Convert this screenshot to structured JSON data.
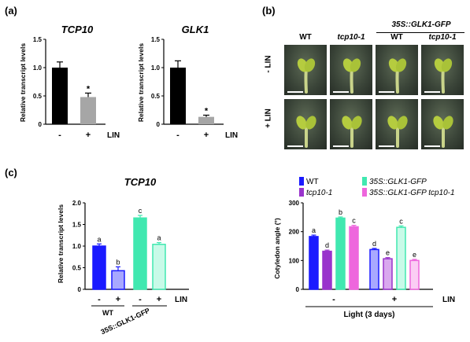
{
  "panel_a": {
    "label": "(a)",
    "charts": [
      {
        "title": "TCP10",
        "ylabel": "Relative transcript levels",
        "yticks": [
          "0",
          "0.5",
          "1.0",
          "1.5"
        ],
        "bars": [
          {
            "value": 1.0,
            "err": 0.1,
            "color": "#000000",
            "x": "-"
          },
          {
            "value": 0.48,
            "err": 0.07,
            "color": "#a6a6a6",
            "x": "+",
            "sig": "*"
          }
        ],
        "xlabel": "LIN"
      },
      {
        "title": "GLK1",
        "ylabel": "Relative transcript levels",
        "yticks": [
          "0",
          "0.5",
          "1.0",
          "1.5"
        ],
        "bars": [
          {
            "value": 1.0,
            "err": 0.12,
            "color": "#000000",
            "x": "-"
          },
          {
            "value": 0.13,
            "err": 0.03,
            "color": "#a6a6a6",
            "x": "+",
            "sig": "*"
          }
        ],
        "xlabel": "LIN"
      }
    ]
  },
  "panel_b": {
    "label": "(b)",
    "group_header": "35S::GLK1-GFP",
    "col_labels": [
      "WT",
      "tcp10-1",
      "WT",
      "tcp10-1"
    ],
    "row_labels": [
      "- LIN",
      "+ LIN"
    ]
  },
  "panel_c": {
    "label": "(c)",
    "chart_data": [
      {
        "type": "bar",
        "title": "TCP10",
        "ylabel": "Relative transcript levels",
        "yticks": [
          "0",
          "0.5",
          "1.0",
          "1.5",
          "2.0"
        ],
        "ylim": [
          0,
          2.0
        ],
        "xlabel": "LIN",
        "x_signs": [
          "-",
          "+",
          "-",
          "+"
        ],
        "groups": [
          "WT",
          "35S::GLK1-GFP"
        ],
        "bars": [
          {
            "value": 1.0,
            "err": 0.05,
            "letter": "a",
            "fill": "#1a1aff",
            "stroke": "#1a1aff"
          },
          {
            "value": 0.43,
            "err": 0.09,
            "letter": "b",
            "fill": "#a8a8ff",
            "stroke": "#1a1aff"
          },
          {
            "value": 1.65,
            "err": 0.06,
            "letter": "c",
            "fill": "#40e8b0",
            "stroke": "#40e8b0"
          },
          {
            "value": 1.04,
            "err": 0.04,
            "letter": "a",
            "fill": "#c8fae8",
            "stroke": "#40e8b0"
          }
        ]
      },
      {
        "type": "bar",
        "ylabel": "Cotyledon angle (°)",
        "yticks": [
          "0",
          "100",
          "200",
          "300"
        ],
        "ylim": [
          0,
          300
        ],
        "xlabel": "LIN",
        "x_signs": [
          "-",
          "+"
        ],
        "bottom_label": "Light (3 days)",
        "legend": [
          {
            "name": "WT",
            "color": "#1a1aff",
            "italic": false
          },
          {
            "name": "35S::GLK1-GFP",
            "color": "#40e8b0",
            "italic": true
          },
          {
            "name": "tcp10-1",
            "color": "#9933cc",
            "italic": true
          },
          {
            "name": "35S::GLK1-GFP tcp10-1",
            "color": "#ee66dd",
            "italic": true
          }
        ],
        "series_groups": [
          {
            "sign": "-",
            "bars": [
              {
                "value": 183,
                "err": 5,
                "letter": "a",
                "fill": "#1a1aff",
                "stroke": "#1a1aff"
              },
              {
                "value": 132,
                "err": 4,
                "letter": "d",
                "fill": "#9933cc",
                "stroke": "#9933cc"
              },
              {
                "value": 247,
                "err": 4,
                "letter": "b",
                "fill": "#40e8b0",
                "stroke": "#40e8b0"
              },
              {
                "value": 217,
                "err": 5,
                "letter": "c",
                "fill": "#ee66dd",
                "stroke": "#ee66dd"
              }
            ]
          },
          {
            "sign": "+",
            "bars": [
              {
                "value": 138,
                "err": 4,
                "letter": "d",
                "fill": "#a8a8ff",
                "stroke": "#1a1aff"
              },
              {
                "value": 106,
                "err": 4,
                "letter": "e",
                "fill": "#d9a8ee",
                "stroke": "#9933cc"
              },
              {
                "value": 215,
                "err": 5,
                "letter": "c",
                "fill": "#c8fae8",
                "stroke": "#40e8b0"
              },
              {
                "value": 100,
                "err": 4,
                "letter": "e",
                "fill": "#fbcdf4",
                "stroke": "#ee66dd"
              }
            ]
          }
        ]
      }
    ]
  }
}
